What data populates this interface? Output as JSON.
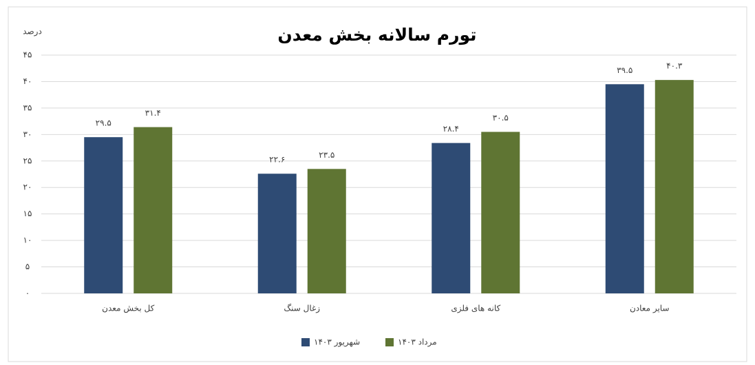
{
  "chart_data": {
    "type": "bar",
    "title": "تورم سالانه بخش معدن",
    "y_label": "درصد",
    "categories": [
      "کل بخش معدن",
      "زغال سنگ",
      "کانه های فلزی",
      "سایر معادن"
    ],
    "series": [
      {
        "name": "شهریور ۱۴۰۳",
        "color": "#2e4b74",
        "values": [
          29.5,
          22.6,
          28.4,
          39.5
        ],
        "value_labels": [
          "۲۹.۵",
          "۲۲.۶",
          "۲۸.۴",
          "۳۹.۵"
        ]
      },
      {
        "name": "مرداد ۱۴۰۳",
        "color": "#5f7533",
        "values": [
          31.4,
          23.5,
          30.5,
          40.3
        ],
        "value_labels": [
          "۳۱.۴",
          "۲۳.۵",
          "۳۰.۵",
          "۴۰.۳"
        ]
      }
    ],
    "ylim": [
      0,
      45
    ],
    "yticks": [
      {
        "value": 0,
        "label": "۰"
      },
      {
        "value": 5,
        "label": "۵"
      },
      {
        "value": 10,
        "label": "۱۰"
      },
      {
        "value": 15,
        "label": "۱۵"
      },
      {
        "value": 20,
        "label": "۲۰"
      },
      {
        "value": 25,
        "label": "۲۵"
      },
      {
        "value": 30,
        "label": "۳۰"
      },
      {
        "value": 35,
        "label": "۳۵"
      },
      {
        "value": 40,
        "label": "۴۰"
      },
      {
        "value": 45,
        "label": "۴۵"
      }
    ],
    "grid": true
  }
}
